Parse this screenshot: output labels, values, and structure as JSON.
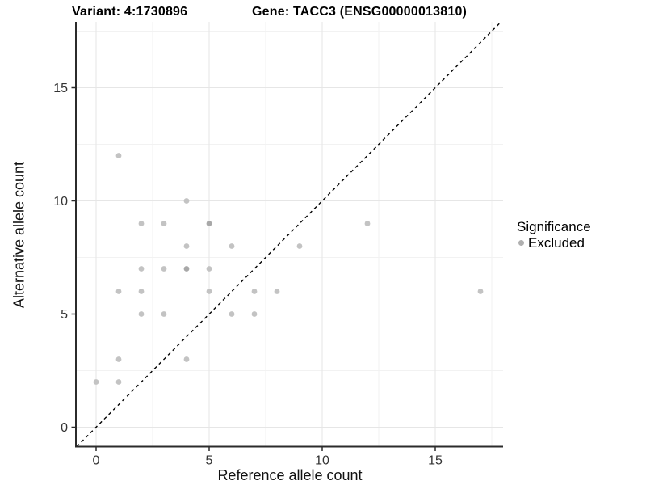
{
  "chart_data": {
    "type": "scatter",
    "title_left": "Variant: 4:1730896",
    "title_right": "Gene: TACC3 (ENSG00000013810)",
    "xlabel": "Reference allele count",
    "ylabel": "Alternative allele count",
    "x_ticks": [
      0,
      5,
      10,
      15
    ],
    "y_ticks": [
      0,
      5,
      10,
      15
    ],
    "x_minor_gridlines": [
      2.5,
      7.5,
      12.5,
      17.5
    ],
    "y_minor_gridlines": [
      2.5,
      7.5,
      12.5,
      17.5
    ],
    "xlim": [
      -0.9,
      18.0
    ],
    "ylim": [
      -0.85,
      17.9
    ],
    "grid": "on",
    "identity_line": {
      "slope": 1,
      "intercept": 0,
      "style": "dashed",
      "color": "#000000"
    },
    "legend": {
      "position": "right",
      "title": "Significance",
      "items": [
        {
          "label": "Excluded",
          "marker": "circle",
          "color": "#b0b0b0"
        }
      ]
    },
    "series": [
      {
        "name": "Excluded",
        "points": [
          {
            "x": 0,
            "y": 2,
            "n": 1
          },
          {
            "x": 1,
            "y": 2,
            "n": 1
          },
          {
            "x": 1,
            "y": 3,
            "n": 1
          },
          {
            "x": 1,
            "y": 6,
            "n": 1
          },
          {
            "x": 1,
            "y": 12,
            "n": 1
          },
          {
            "x": 2,
            "y": 5,
            "n": 1
          },
          {
            "x": 2,
            "y": 6,
            "n": 1
          },
          {
            "x": 2,
            "y": 7,
            "n": 1
          },
          {
            "x": 2,
            "y": 9,
            "n": 1
          },
          {
            "x": 3,
            "y": 5,
            "n": 1
          },
          {
            "x": 3,
            "y": 7,
            "n": 1
          },
          {
            "x": 3,
            "y": 9,
            "n": 1
          },
          {
            "x": 4,
            "y": 3,
            "n": 1
          },
          {
            "x": 4,
            "y": 7,
            "n": 2
          },
          {
            "x": 4,
            "y": 8,
            "n": 1
          },
          {
            "x": 4,
            "y": 10,
            "n": 1
          },
          {
            "x": 5,
            "y": 6,
            "n": 1
          },
          {
            "x": 5,
            "y": 7,
            "n": 1
          },
          {
            "x": 5,
            "y": 9,
            "n": 2
          },
          {
            "x": 6,
            "y": 5,
            "n": 1
          },
          {
            "x": 6,
            "y": 8,
            "n": 1
          },
          {
            "x": 7,
            "y": 5,
            "n": 1
          },
          {
            "x": 7,
            "y": 6,
            "n": 1
          },
          {
            "x": 8,
            "y": 6,
            "n": 1
          },
          {
            "x": 9,
            "y": 8,
            "n": 1
          },
          {
            "x": 12,
            "y": 9,
            "n": 1
          },
          {
            "x": 17,
            "y": 6,
            "n": 1
          }
        ]
      }
    ],
    "colors": {
      "point": "#c3c3c3",
      "point_overlap": "#a8a8a8",
      "grid_major": "#e6e6e6",
      "grid_minor": "#f2f2f2",
      "axis_line": "#2b2b2b",
      "tick_label": "#333333"
    }
  }
}
